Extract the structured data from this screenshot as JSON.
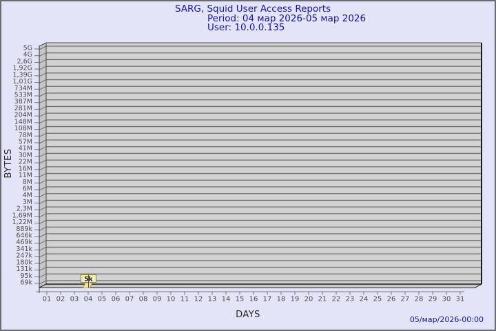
{
  "header": {
    "title": "SARG, Squid User Access Reports",
    "period": "Period: 04 мар 2026-05 мар 2026",
    "user": "User: 10.0.0.135"
  },
  "axes": {
    "y_title": "BYTES",
    "x_title": "DAYS"
  },
  "flag": {
    "label": "5k",
    "day": "04"
  },
  "footer": {
    "timestamp": "05/мар/2026-00:00"
  },
  "colors": {
    "background": "#E4E4F8",
    "frame_border": "#6A6A75",
    "title_text": "#15159B",
    "plot_face": "#D2D2D2",
    "plot_wall": "#C6C6C6",
    "grid_line": "#6E6E6E",
    "plot_edge": "#1A1A1A",
    "tick_text": "#4B4B4B",
    "bar_fill": "#F2E3A4",
    "flag_background": "#FCF8D2",
    "flag_border": "#8E8E3C"
  },
  "chart_data": {
    "type": "bar",
    "title": "SARG, Squid User Access Reports",
    "subtitle": [
      "Period: 04 мар 2026-05 мар 2026",
      "User: 10.0.0.135"
    ],
    "xlabel": "DAYS",
    "ylabel": "BYTES",
    "y_scale": "logarithmic",
    "grid": true,
    "legend": null,
    "y_tick_labels": [
      "5G",
      "4G",
      "2,6G",
      "1,92G",
      "1,39G",
      "1,01G",
      "734M",
      "533M",
      "387M",
      "281M",
      "204M",
      "148M",
      "108M",
      "78M",
      "57M",
      "41M",
      "30M",
      "22M",
      "16M",
      "11M",
      "8M",
      "6M",
      "4M",
      "3M",
      "2,3M",
      "1,69M",
      "1,22M",
      "889k",
      "646k",
      "469k",
      "341k",
      "247k",
      "180k",
      "131k",
      "95k",
      "69k"
    ],
    "x_tick_labels": [
      "01",
      "02",
      "03",
      "04",
      "05",
      "06",
      "07",
      "08",
      "09",
      "10",
      "11",
      "12",
      "13",
      "14",
      "15",
      "16",
      "17",
      "18",
      "19",
      "20",
      "21",
      "22",
      "23",
      "24",
      "25",
      "26",
      "27",
      "28",
      "29",
      "30",
      "31"
    ],
    "values_bytes": [
      0,
      0,
      0,
      5000,
      0,
      0,
      0,
      0,
      0,
      0,
      0,
      0,
      0,
      0,
      0,
      0,
      0,
      0,
      0,
      0,
      0,
      0,
      0,
      0,
      0,
      0,
      0,
      0,
      0,
      0,
      0
    ],
    "bar_labels": {
      "04": "5k"
    }
  }
}
